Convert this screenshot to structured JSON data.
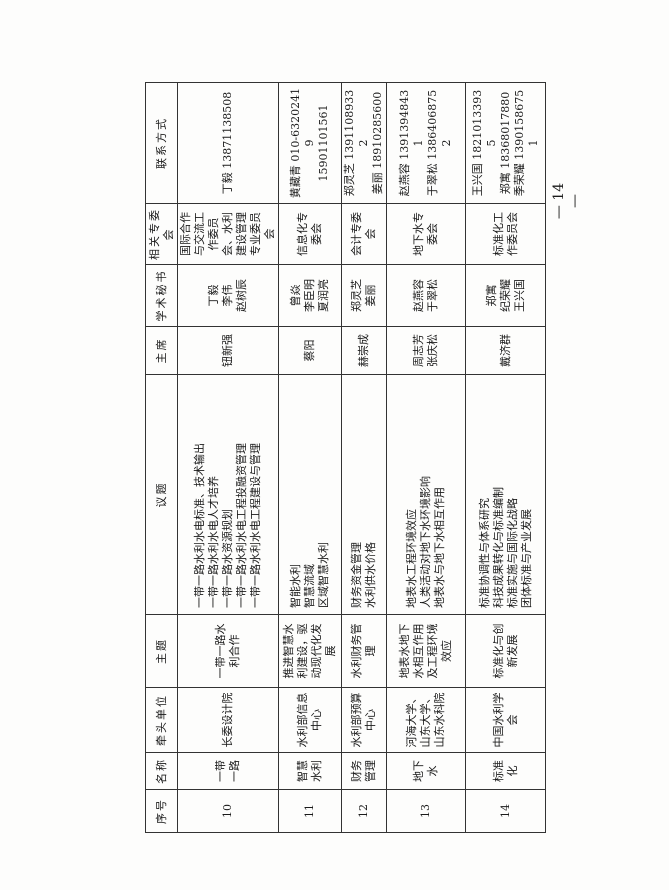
{
  "headers": [
    "序号",
    "名称",
    "牵头单位",
    "主题",
    "议题",
    "主席",
    "学术秘书",
    "相关专委会",
    "联系方式"
  ],
  "rows": [
    {
      "no": "10",
      "name": "一带一路",
      "lead": "长委设计院",
      "theme": "一带一路水利合作",
      "topics": [
        "一带一路水利水电标准、技术输出",
        "一带一路水利水电人才培养",
        "一带一路水资源规划",
        "一带一路水利水电工程投融资管理",
        "一带一路水利水电工程建设与管理"
      ],
      "chair": [
        "钮新强"
      ],
      "secretary": [
        "丁毅",
        "李伟",
        "赵树辰"
      ],
      "committee": "国际合作与交流工作委员会、水利建设管理专业委员会",
      "contact": [
        "丁毅 13871138508"
      ]
    },
    {
      "no": "11",
      "name": "智慧水利",
      "lead": "水利部信息中心",
      "theme": "推进智慧水利建设，驱动现代化发展",
      "topics": [
        "智能水利",
        "智慧流域",
        "区域智慧水利"
      ],
      "chair": [
        "蔡阳"
      ],
      "secretary": [
        "曾焱",
        "李臣明",
        "夏润亮"
      ],
      "committee": "信息化专委会",
      "contact": [
        "黄藏青 010-63202419",
        "15901101561"
      ]
    },
    {
      "no": "12",
      "name": "财务管理",
      "lead": "水利部预算中心",
      "theme": "水利财务管理",
      "topics": [
        "财务资金管理",
        "水利供水价格"
      ],
      "chair": [
        "赫崇成"
      ],
      "secretary": [
        "郑灵芝",
        "姜丽"
      ],
      "committee": "会计专委会",
      "contact": [
        "郑灵芝 13911089332",
        "姜丽 18910285600"
      ]
    },
    {
      "no": "13",
      "name": "地下水",
      "lead": "河海大学、山东大学、山东水科院",
      "theme": "地表水地下水相互作用及工程环境效应",
      "topics": [
        "地表水工程环境效应",
        "人类活动对地下水环境影响",
        "地表水与地下水相互作用"
      ],
      "chair": [
        "周志芳",
        "张庆松"
      ],
      "secretary": [
        "赵燕容",
        "于翠松"
      ],
      "committee": "地下水专委会",
      "contact": [
        "赵燕容 13913948431",
        "于翠松 13864068752"
      ]
    },
    {
      "no": "14",
      "name": "标准化",
      "lead": "中国水利学会",
      "theme": "标准化与创新发展",
      "topics": [
        "标准协调性与体系研究",
        "科技成果转化与标准编制",
        "标准实施与国际化战略",
        "团体标准与产业发展"
      ],
      "chair": [
        "戴济群"
      ],
      "secretary": [
        "郑寓",
        "纪荣耀",
        "王兴国"
      ],
      "committee": "标准化工作委员会",
      "contact": [
        "王兴国 18210133935",
        "郑寓 18368017880",
        "季荣耀 13901586751"
      ]
    }
  ],
  "page_number": "— 14 —"
}
